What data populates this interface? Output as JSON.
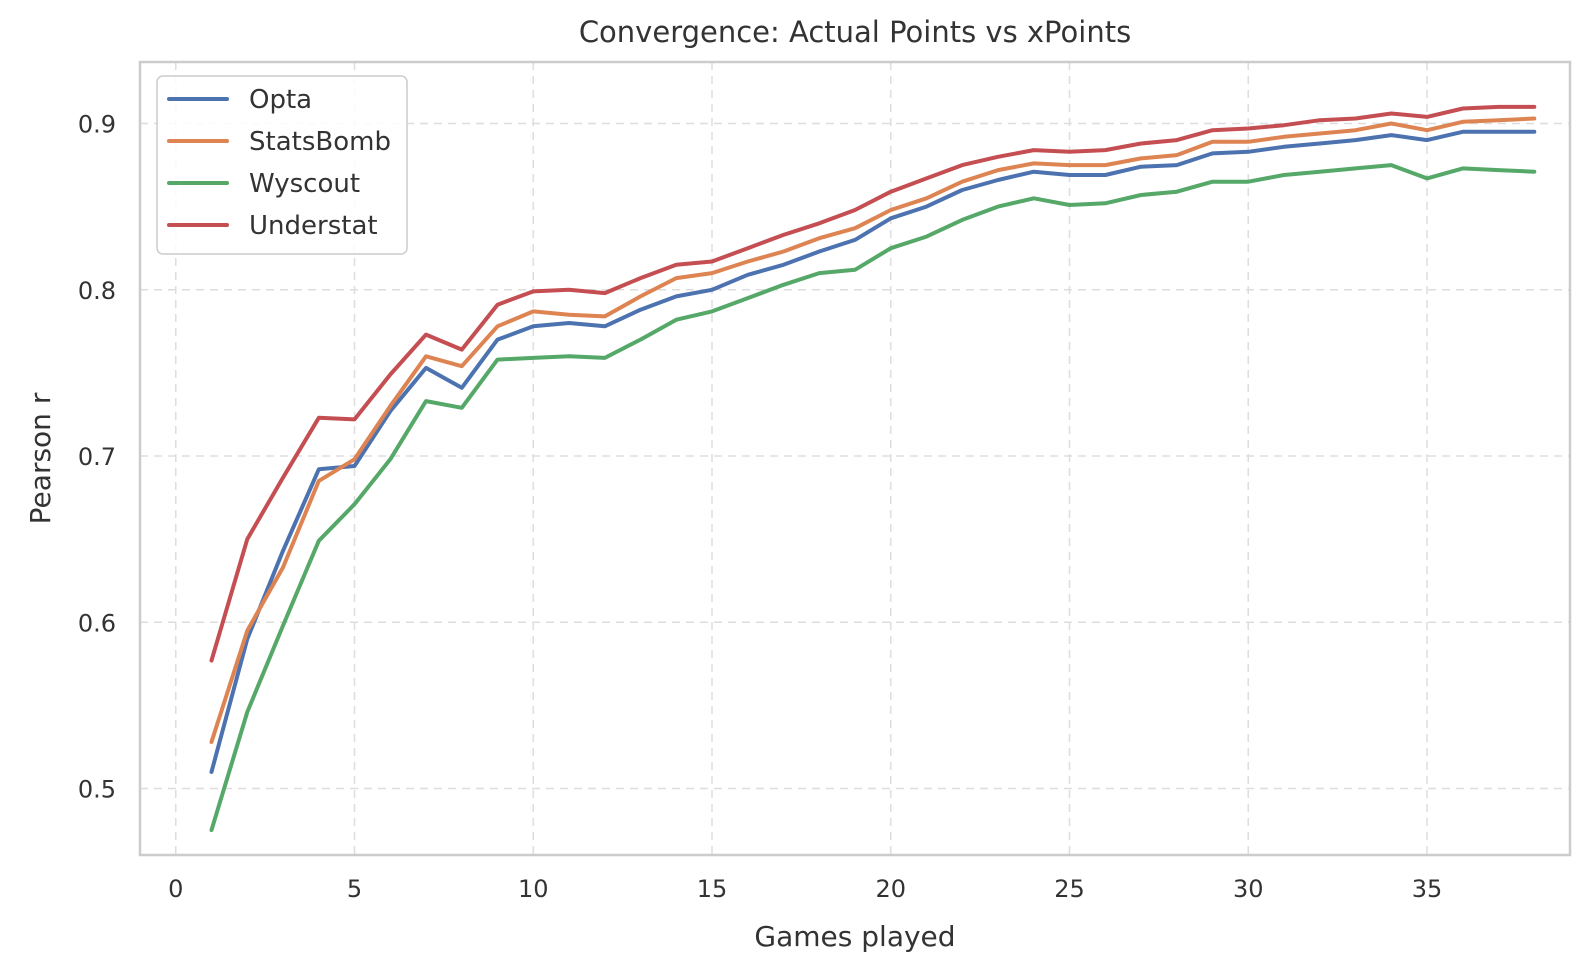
{
  "chart_data": {
    "type": "line",
    "title": "Convergence: Actual Points vs xPoints",
    "xlabel": "Games played",
    "ylabel": "Pearson r",
    "xlim": [
      -1,
      39
    ],
    "ylim": [
      0.46,
      0.937
    ],
    "xticks": [
      0,
      5,
      10,
      15,
      20,
      25,
      30,
      35
    ],
    "yticks": [
      0.5,
      0.6,
      0.7,
      0.8,
      0.9
    ],
    "grid": true,
    "legend_position": "top-left",
    "x": [
      1,
      2,
      3,
      4,
      5,
      6,
      7,
      8,
      9,
      10,
      11,
      12,
      13,
      14,
      15,
      16,
      17,
      18,
      19,
      20,
      21,
      22,
      23,
      24,
      25,
      26,
      27,
      28,
      29,
      30,
      31,
      32,
      33,
      34,
      35,
      36,
      37,
      38
    ],
    "series": [
      {
        "name": "Opta",
        "color": "#4c72b0",
        "values": [
          0.51,
          0.59,
          0.643,
          0.692,
          0.694,
          0.727,
          0.753,
          0.741,
          0.77,
          0.778,
          0.78,
          0.778,
          0.788,
          0.796,
          0.8,
          0.809,
          0.815,
          0.823,
          0.83,
          0.843,
          0.85,
          0.86,
          0.866,
          0.871,
          0.869,
          0.869,
          0.874,
          0.875,
          0.882,
          0.883,
          0.886,
          0.888,
          0.89,
          0.893,
          0.89,
          0.895,
          0.895,
          0.895
        ]
      },
      {
        "name": "StatsBomb",
        "color": "#dd8452",
        "values": [
          0.528,
          0.595,
          0.633,
          0.685,
          0.698,
          0.73,
          0.76,
          0.754,
          0.778,
          0.787,
          0.785,
          0.784,
          0.796,
          0.807,
          0.81,
          0.817,
          0.823,
          0.831,
          0.837,
          0.848,
          0.855,
          0.865,
          0.872,
          0.876,
          0.875,
          0.875,
          0.879,
          0.881,
          0.889,
          0.889,
          0.892,
          0.894,
          0.896,
          0.9,
          0.896,
          0.901,
          0.902,
          0.903
        ]
      },
      {
        "name": "Wyscout",
        "color": "#55a868",
        "values": [
          0.475,
          0.546,
          0.598,
          0.649,
          0.671,
          0.698,
          0.733,
          0.729,
          0.758,
          0.759,
          0.76,
          0.759,
          0.77,
          0.782,
          0.787,
          0.795,
          0.803,
          0.81,
          0.812,
          0.825,
          0.832,
          0.842,
          0.85,
          0.855,
          0.851,
          0.852,
          0.857,
          0.859,
          0.865,
          0.865,
          0.869,
          0.871,
          0.873,
          0.875,
          0.867,
          0.873,
          0.872,
          0.871
        ]
      },
      {
        "name": "Understat",
        "color": "#c44e52",
        "values": [
          0.577,
          0.65,
          0.687,
          0.723,
          0.722,
          0.749,
          0.773,
          0.764,
          0.791,
          0.799,
          0.8,
          0.798,
          0.807,
          0.815,
          0.817,
          0.825,
          0.833,
          0.84,
          0.848,
          0.859,
          0.867,
          0.875,
          0.88,
          0.884,
          0.883,
          0.884,
          0.888,
          0.89,
          0.896,
          0.897,
          0.899,
          0.902,
          0.903,
          0.906,
          0.904,
          0.909,
          0.91,
          0.91
        ]
      }
    ]
  }
}
